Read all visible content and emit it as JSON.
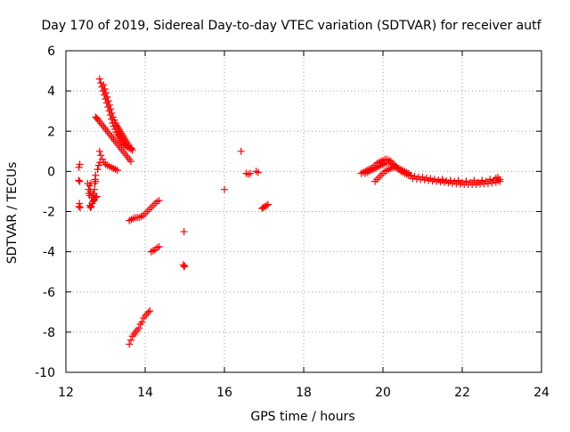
{
  "chart_data": {
    "type": "scatter",
    "title": "Day 170 of 2019, Sidereal Day-to-day VTEC variation (SDTVAR) for receiver autf",
    "xlabel": "GPS time / hours",
    "ylabel": "SDTVAR / TECUs",
    "xlim": [
      12,
      24
    ],
    "ylim": [
      -10,
      6
    ],
    "x_ticks": [
      12,
      14,
      16,
      18,
      20,
      22,
      24
    ],
    "y_ticks": [
      -10,
      -8,
      -6,
      -4,
      -2,
      0,
      2,
      4,
      6
    ],
    "grid": true,
    "marker": "+",
    "marker_color": "#ff0000",
    "series": [
      {
        "name": "SDTVAR",
        "points": [
          [
            12.32,
            -0.45
          ],
          [
            12.35,
            -0.5
          ],
          [
            12.33,
            0.2
          ],
          [
            12.35,
            0.35
          ],
          [
            12.34,
            -1.6
          ],
          [
            12.36,
            -1.8
          ],
          [
            12.33,
            -1.75
          ],
          [
            12.55,
            -0.6
          ],
          [
            12.57,
            -0.9
          ],
          [
            12.58,
            -1.1
          ],
          [
            12.6,
            -1.2
          ],
          [
            12.62,
            -1.0
          ],
          [
            12.6,
            -0.7
          ],
          [
            12.63,
            -0.6
          ],
          [
            12.65,
            -1.3
          ],
          [
            12.68,
            -1.2
          ],
          [
            12.7,
            -1.1
          ],
          [
            12.72,
            -0.9
          ],
          [
            12.73,
            -0.6
          ],
          [
            12.75,
            -0.5
          ],
          [
            12.74,
            -0.4
          ],
          [
            12.6,
            -1.7
          ],
          [
            12.62,
            -1.8
          ],
          [
            12.64,
            -1.75
          ],
          [
            12.66,
            -1.6
          ],
          [
            12.68,
            -1.5
          ],
          [
            12.7,
            -1.45
          ],
          [
            12.72,
            -1.4
          ],
          [
            12.75,
            -1.3
          ],
          [
            12.78,
            -1.25
          ],
          [
            12.75,
            -0.2
          ],
          [
            12.8,
            0.1
          ],
          [
            12.83,
            0.3
          ],
          [
            12.86,
            0.45
          ],
          [
            12.75,
            2.7
          ],
          [
            12.78,
            2.65
          ],
          [
            12.8,
            2.6
          ],
          [
            12.84,
            2.5
          ],
          [
            12.88,
            2.4
          ],
          [
            12.92,
            2.3
          ],
          [
            12.96,
            2.2
          ],
          [
            13.0,
            2.1
          ],
          [
            13.04,
            2.0
          ],
          [
            13.08,
            1.9
          ],
          [
            13.12,
            1.8
          ],
          [
            13.16,
            1.7
          ],
          [
            13.2,
            1.6
          ],
          [
            13.24,
            1.5
          ],
          [
            13.28,
            1.4
          ],
          [
            13.32,
            1.3
          ],
          [
            13.36,
            1.2
          ],
          [
            13.4,
            1.1
          ],
          [
            13.44,
            1.0
          ],
          [
            13.48,
            0.9
          ],
          [
            13.52,
            0.8
          ],
          [
            13.56,
            0.7
          ],
          [
            13.6,
            0.6
          ],
          [
            13.64,
            0.5
          ],
          [
            12.85,
            4.6
          ],
          [
            12.88,
            4.4
          ],
          [
            12.91,
            4.2
          ],
          [
            12.94,
            4.0
          ],
          [
            12.97,
            3.8
          ],
          [
            13.0,
            3.6
          ],
          [
            13.03,
            3.4
          ],
          [
            13.06,
            3.2
          ],
          [
            13.09,
            3.0
          ],
          [
            13.12,
            2.8
          ],
          [
            13.15,
            2.6
          ],
          [
            13.18,
            2.4
          ],
          [
            13.21,
            2.25
          ],
          [
            13.24,
            2.1
          ],
          [
            13.27,
            1.95
          ],
          [
            13.3,
            1.85
          ],
          [
            13.33,
            1.75
          ],
          [
            13.36,
            1.65
          ],
          [
            13.39,
            1.55
          ],
          [
            13.42,
            1.45
          ],
          [
            13.45,
            1.35
          ],
          [
            13.48,
            1.3
          ],
          [
            13.52,
            1.25
          ],
          [
            13.56,
            1.2
          ],
          [
            13.6,
            1.15
          ],
          [
            13.64,
            1.1
          ],
          [
            13.68,
            1.05
          ],
          [
            12.95,
            4.3
          ],
          [
            12.98,
            4.1
          ],
          [
            13.01,
            3.9
          ],
          [
            13.04,
            3.7
          ],
          [
            13.07,
            3.5
          ],
          [
            13.1,
            3.3
          ],
          [
            13.13,
            3.1
          ],
          [
            13.16,
            2.9
          ],
          [
            13.19,
            2.7
          ],
          [
            13.22,
            2.55
          ],
          [
            13.25,
            2.4
          ],
          [
            13.28,
            2.3
          ],
          [
            13.31,
            2.2
          ],
          [
            13.34,
            2.1
          ],
          [
            13.37,
            2.0
          ],
          [
            13.4,
            1.9
          ],
          [
            13.43,
            1.8
          ],
          [
            13.46,
            1.7
          ],
          [
            13.49,
            1.6
          ],
          [
            13.52,
            1.5
          ],
          [
            13.55,
            1.4
          ],
          [
            13.58,
            1.3
          ],
          [
            13.62,
            1.2
          ],
          [
            13.66,
            1.15
          ],
          [
            12.85,
            1.0
          ],
          [
            12.88,
            0.8
          ],
          [
            12.92,
            0.6
          ],
          [
            12.96,
            0.45
          ],
          [
            13.0,
            0.35
          ],
          [
            13.05,
            0.3
          ],
          [
            13.1,
            0.25
          ],
          [
            13.15,
            0.2
          ],
          [
            13.2,
            0.15
          ],
          [
            13.25,
            0.1
          ],
          [
            13.3,
            0.05
          ],
          [
            13.6,
            -2.45
          ],
          [
            13.65,
            -2.4
          ],
          [
            13.7,
            -2.35
          ],
          [
            13.75,
            -2.3
          ],
          [
            13.8,
            -2.3
          ],
          [
            13.85,
            -2.3
          ],
          [
            13.9,
            -2.25
          ],
          [
            13.95,
            -2.2
          ],
          [
            14.0,
            -2.1
          ],
          [
            14.05,
            -2.0
          ],
          [
            14.1,
            -1.9
          ],
          [
            14.15,
            -1.8
          ],
          [
            14.2,
            -1.7
          ],
          [
            14.25,
            -1.6
          ],
          [
            14.3,
            -1.5
          ],
          [
            14.35,
            -1.45
          ],
          [
            14.15,
            -4.0
          ],
          [
            14.2,
            -3.95
          ],
          [
            14.25,
            -3.9
          ],
          [
            14.3,
            -3.8
          ],
          [
            14.35,
            -3.75
          ],
          [
            13.6,
            -8.6
          ],
          [
            13.64,
            -8.4
          ],
          [
            13.68,
            -8.2
          ],
          [
            13.72,
            -8.1
          ],
          [
            13.76,
            -8.0
          ],
          [
            13.8,
            -7.9
          ],
          [
            13.84,
            -7.8
          ],
          [
            13.88,
            -7.6
          ],
          [
            13.92,
            -7.5
          ],
          [
            13.96,
            -7.3
          ],
          [
            14.0,
            -7.2
          ],
          [
            14.04,
            -7.1
          ],
          [
            14.08,
            -7.0
          ],
          [
            14.12,
            -6.95
          ],
          [
            14.98,
            -3.0
          ],
          [
            14.96,
            -4.65
          ],
          [
            14.98,
            -4.75
          ],
          [
            15.0,
            -4.7
          ],
          [
            16.0,
            -0.9
          ],
          [
            16.42,
            1.0
          ],
          [
            16.55,
            -0.1
          ],
          [
            16.6,
            -0.15
          ],
          [
            16.65,
            -0.1
          ],
          [
            16.8,
            0.0
          ],
          [
            16.85,
            -0.05
          ],
          [
            16.95,
            -1.85
          ],
          [
            16.98,
            -1.8
          ],
          [
            17.02,
            -1.75
          ],
          [
            17.06,
            -1.7
          ],
          [
            17.1,
            -1.65
          ],
          [
            19.45,
            -0.1
          ],
          [
            19.5,
            -0.05
          ],
          [
            19.55,
            0.0
          ],
          [
            19.6,
            0.05
          ],
          [
            19.65,
            0.1
          ],
          [
            19.7,
            0.15
          ],
          [
            19.75,
            0.2
          ],
          [
            19.8,
            0.3
          ],
          [
            19.85,
            0.4
          ],
          [
            19.9,
            0.45
          ],
          [
            19.95,
            0.5
          ],
          [
            20.0,
            0.55
          ],
          [
            20.05,
            0.6
          ],
          [
            20.1,
            0.6
          ],
          [
            20.15,
            0.55
          ],
          [
            20.2,
            0.5
          ],
          [
            20.25,
            0.4
          ],
          [
            20.3,
            0.3
          ],
          [
            20.35,
            0.2
          ],
          [
            20.4,
            0.1
          ],
          [
            20.45,
            0.0
          ],
          [
            20.5,
            -0.05
          ],
          [
            20.55,
            -0.1
          ],
          [
            20.6,
            -0.15
          ],
          [
            20.65,
            -0.2
          ],
          [
            20.7,
            -0.22
          ],
          [
            19.55,
            -0.1
          ],
          [
            19.6,
            -0.05
          ],
          [
            19.65,
            0.0
          ],
          [
            19.7,
            0.05
          ],
          [
            19.75,
            0.1
          ],
          [
            19.8,
            0.15
          ],
          [
            19.85,
            0.2
          ],
          [
            19.9,
            0.25
          ],
          [
            19.95,
            0.3
          ],
          [
            20.0,
            0.35
          ],
          [
            20.05,
            0.4
          ],
          [
            20.1,
            0.42
          ],
          [
            20.15,
            0.42
          ],
          [
            20.2,
            0.4
          ],
          [
            20.25,
            0.35
          ],
          [
            20.3,
            0.25
          ],
          [
            20.35,
            0.15
          ],
          [
            19.8,
            -0.5
          ],
          [
            19.85,
            -0.4
          ],
          [
            19.9,
            -0.3
          ],
          [
            19.95,
            -0.2
          ],
          [
            20.0,
            -0.1
          ],
          [
            20.05,
            0.0
          ],
          [
            20.1,
            0.05
          ],
          [
            20.15,
            0.1
          ],
          [
            20.2,
            0.15
          ],
          [
            20.25,
            0.2
          ],
          [
            20.3,
            0.2
          ],
          [
            20.35,
            0.18
          ],
          [
            20.4,
            0.15
          ],
          [
            20.45,
            0.1
          ],
          [
            20.5,
            0.05
          ],
          [
            20.55,
            0.0
          ],
          [
            20.6,
            -0.05
          ],
          [
            20.65,
            -0.1
          ],
          [
            20.7,
            -0.2
          ],
          [
            20.8,
            -0.25
          ],
          [
            20.9,
            -0.28
          ],
          [
            21.0,
            -0.3
          ],
          [
            21.1,
            -0.33
          ],
          [
            21.2,
            -0.36
          ],
          [
            21.3,
            -0.4
          ],
          [
            21.4,
            -0.43
          ],
          [
            21.5,
            -0.45
          ],
          [
            21.6,
            -0.47
          ],
          [
            21.7,
            -0.5
          ],
          [
            21.8,
            -0.5
          ],
          [
            21.9,
            -0.52
          ],
          [
            22.0,
            -0.55
          ],
          [
            22.1,
            -0.55
          ],
          [
            22.2,
            -0.55
          ],
          [
            22.3,
            -0.55
          ],
          [
            22.4,
            -0.55
          ],
          [
            22.5,
            -0.52
          ],
          [
            22.6,
            -0.5
          ],
          [
            22.7,
            -0.48
          ],
          [
            22.8,
            -0.45
          ],
          [
            22.9,
            -0.45
          ],
          [
            22.95,
            -0.5
          ],
          [
            20.75,
            -0.35
          ],
          [
            20.85,
            -0.38
          ],
          [
            20.95,
            -0.4
          ],
          [
            21.05,
            -0.42
          ],
          [
            21.15,
            -0.45
          ],
          [
            21.25,
            -0.48
          ],
          [
            21.35,
            -0.5
          ],
          [
            21.45,
            -0.52
          ],
          [
            21.55,
            -0.55
          ],
          [
            21.65,
            -0.57
          ],
          [
            21.75,
            -0.6
          ],
          [
            21.85,
            -0.62
          ],
          [
            21.95,
            -0.63
          ],
          [
            22.05,
            -0.65
          ],
          [
            22.15,
            -0.65
          ],
          [
            22.25,
            -0.65
          ],
          [
            22.35,
            -0.65
          ],
          [
            22.45,
            -0.63
          ],
          [
            22.55,
            -0.62
          ],
          [
            22.65,
            -0.6
          ],
          [
            22.75,
            -0.58
          ],
          [
            22.85,
            -0.55
          ],
          [
            22.95,
            -0.4
          ],
          [
            21.5,
            -0.4
          ],
          [
            21.7,
            -0.45
          ],
          [
            21.9,
            -0.45
          ],
          [
            22.1,
            -0.48
          ],
          [
            22.3,
            -0.45
          ],
          [
            22.5,
            -0.45
          ],
          [
            22.7,
            -0.4
          ],
          [
            22.85,
            -0.35
          ],
          [
            22.9,
            -0.3
          ]
        ]
      }
    ]
  }
}
